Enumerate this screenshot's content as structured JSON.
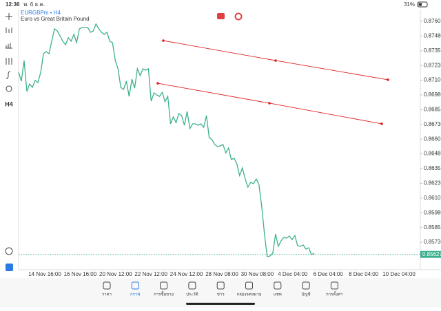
{
  "status_bar": {
    "time": "12:36",
    "date": "พ. 6 ธ.ค.",
    "battery": "31%"
  },
  "header": {
    "symbol": "EURGBPm • H4",
    "description": "Euro vs Great Britain Pound"
  },
  "toolbar": {
    "timeframe": "H4"
  },
  "chart_data": {
    "type": "line",
    "color": "#3bb08f",
    "values": [
      0.87173,
      0.87097,
      0.87272,
      0.87009,
      0.87073,
      0.87044,
      0.87103,
      0.87085,
      0.87173,
      0.8733,
      0.87348,
      0.8733,
      0.87436,
      0.87541,
      0.87523,
      0.87482,
      0.87436,
      0.87406,
      0.87465,
      0.87436,
      0.87494,
      0.87424,
      0.87541,
      0.87552,
      0.87552,
      0.87552,
      0.87512,
      0.87523,
      0.87582,
      0.87541,
      0.87512,
      0.87494,
      0.87512,
      0.87436,
      0.87424,
      0.87272,
      0.87202,
      0.87044,
      0.87027,
      0.87097,
      0.86968,
      0.87114,
      0.87038,
      0.87202,
      0.87144,
      0.87202,
      0.8719,
      0.87202,
      0.86927,
      0.86998,
      0.8698,
      0.86968,
      0.87003,
      0.86922,
      0.86968,
      0.86735,
      0.86793,
      0.86746,
      0.86822,
      0.86805,
      0.86723,
      0.8684,
      0.86694,
      0.86735,
      0.86735,
      0.86723,
      0.86735,
      0.86705,
      0.86805,
      0.86618,
      0.866,
      0.86559,
      0.86542,
      0.86548,
      0.86559,
      0.86489,
      0.8653,
      0.86431,
      0.86443,
      0.86396,
      0.86297,
      0.86361,
      0.86267,
      0.86197,
      0.86238,
      0.86227,
      0.86267,
      0.86221,
      0.86034,
      0.858,
      0.85607,
      0.85613,
      0.85637,
      0.858,
      0.85695,
      0.85742,
      0.85771,
      0.85765,
      0.85783,
      0.85753,
      0.85788,
      0.85701,
      0.85695,
      0.85707,
      0.85672,
      0.85683,
      0.85625,
      0.85637
    ],
    "ylim": [
      0.85497,
      0.87704
    ],
    "yticks": [
      0.87605,
      {
        "value": 0.8748,
        "label": "0.87480"
      },
      0.87355,
      {
        "value": 0.8723,
        "label": "0.87230"
      },
      0.87105,
      {
        "value": 0.8698,
        "label": "0.86980"
      },
      0.86855,
      {
        "value": 0.8673,
        "label": "0.86730"
      },
      0.86605,
      {
        "value": 0.8648,
        "label": "0.86480"
      },
      0.86355,
      {
        "value": 0.8623,
        "label": "0.86230"
      },
      0.86105,
      {
        "value": 0.8598,
        "label": "0.85980"
      },
      0.85855,
      {
        "value": 0.8573,
        "label": "0.85730"
      }
    ],
    "time_labels": [
      "14 Nov 16:00",
      "16 Nov 16:00",
      "20 Nov 12:00",
      "22 Nov 12:00",
      "24 Nov 12:00",
      "28 Nov 08:00",
      "30 Nov 08:00",
      "4 Dec 04:00",
      "6 Dec 04:00",
      "8 Dec 04:00",
      "10 Dec 04:00"
    ],
    "current_price": 0.85627,
    "trend_color": "#e02020",
    "trend_lines": [
      {
        "values": [
          0.87441,
          0.87272,
          0.87109
        ]
      },
      {
        "values": [
          0.87079,
          0.8691,
          0.86735
        ]
      }
    ]
  },
  "nav": [
    "ราคา",
    "กราฟ",
    "การซื้อขาย",
    "ประวัติ",
    "ข่าว",
    "กล่องจดหมาย",
    "แชท",
    "บัญชี",
    "การตั้งค่า"
  ]
}
